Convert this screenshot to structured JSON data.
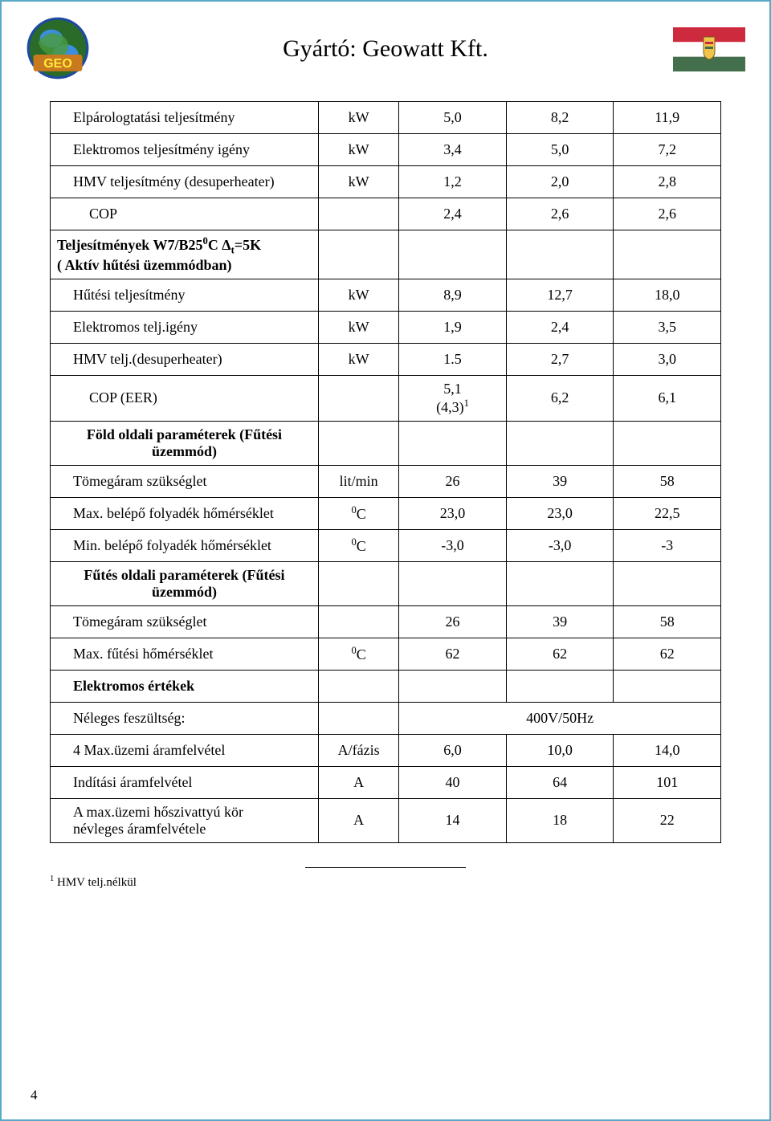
{
  "title": "Gyártó: Geowatt Kft.",
  "page_number": "4",
  "footnote": {
    "marker": "1",
    "text": "HMV telj.nélkül"
  },
  "flag": {
    "stripes": [
      "#cd2a3e",
      "#ffffff",
      "#436f4d"
    ],
    "emblem_bg": "#f0c44a"
  },
  "rows": [
    {
      "label": "Elpárologtatási teljesítmény",
      "unit": "kW",
      "v": [
        "5,0",
        "8,2",
        "11,9"
      ],
      "indent": 1
    },
    {
      "label": "Elektromos teljesítmény igény",
      "unit": "kW",
      "v": [
        "3,4",
        "5,0",
        "7,2"
      ],
      "indent": 1
    },
    {
      "label": "HMV teljesítmény (desuperheater)",
      "unit": "kW",
      "v": [
        "1,2",
        "2,0",
        "2,8"
      ],
      "indent": 1
    },
    {
      "label": "COP",
      "unit": "",
      "v": [
        "2,4",
        "2,6",
        "2,6"
      ],
      "indent": 2
    },
    {
      "section": true,
      "label_html": "Teljesítmények W7/B25<span class='sup'>0</span>C Δ<span class='sub'>t</span>=5K<br>( Aktív hűtési üzemmódban)"
    },
    {
      "label": "Hűtési teljesítmény",
      "unit": "kW",
      "v": [
        "8,9",
        "12,7",
        "18,0"
      ],
      "indent": 1
    },
    {
      "label": "Elektromos telj.igény",
      "unit": "kW",
      "v": [
        "1,9",
        "2,4",
        "3,5"
      ],
      "indent": 1
    },
    {
      "label": "HMV telj.(desuperheater)",
      "unit": "kW",
      "v": [
        "1.5",
        "2,7",
        "3,0"
      ],
      "indent": 1
    },
    {
      "label": "COP (EER)",
      "unit": "",
      "v_html": [
        "5,1<br>(4,3)<span class='sup'>1</span>",
        "6,2",
        "6,1"
      ],
      "indent": 2
    },
    {
      "section": true,
      "center": true,
      "label_html": "Föld oldali paraméterek  (Fűtési<br>üzemmód)"
    },
    {
      "label": "Tömegáram szükséglet",
      "unit": "lit/min",
      "v": [
        "26",
        "39",
        "58"
      ],
      "indent": 1
    },
    {
      "label_html": "Max. belépő folyadék hőmérséklet",
      "unit_html": "<span class='sup'>0</span>C",
      "v": [
        "23,0",
        "23,0",
        "22,5"
      ],
      "indent": 1
    },
    {
      "label_html": "Min. belépő folyadék hőmérséklet",
      "unit_html": "<span class='sup'>0</span>C",
      "v": [
        "-3,0",
        "-3,0",
        "-3"
      ],
      "indent": 1
    },
    {
      "section": true,
      "center": true,
      "label_html": "Fűtés oldali paraméterek  (Fűtési<br>üzemmód)"
    },
    {
      "label": "Tömegáram szükséglet",
      "unit": "",
      "v": [
        "26",
        "39",
        "58"
      ],
      "indent": 1
    },
    {
      "label_html": "Max. fűtési hőmérséklet",
      "unit_html": "<span class='sup'>0</span>C",
      "v": [
        "62",
        "62",
        "62"
      ],
      "indent": 1
    },
    {
      "section": true,
      "label_html": "Elektromos értékek",
      "indent": 1
    },
    {
      "label": "Néleges feszültség:",
      "unit": "",
      "span3": "400V/50Hz",
      "indent": 1
    },
    {
      "label": "4 Max.üzemi áramfelvétel",
      "unit": "A/fázis",
      "v": [
        "6,0",
        "10,0",
        "14,0"
      ],
      "indent": 1
    },
    {
      "label": "Indítási áramfelvétel",
      "unit": "A",
      "v": [
        "40",
        "64",
        "101"
      ],
      "indent": 1
    },
    {
      "label_html": "A max.üzemi hőszivattyú kör<br>névleges áramfelvétele",
      "unit": "A",
      "v": [
        "14",
        "18",
        "22"
      ],
      "indent": 1
    }
  ]
}
